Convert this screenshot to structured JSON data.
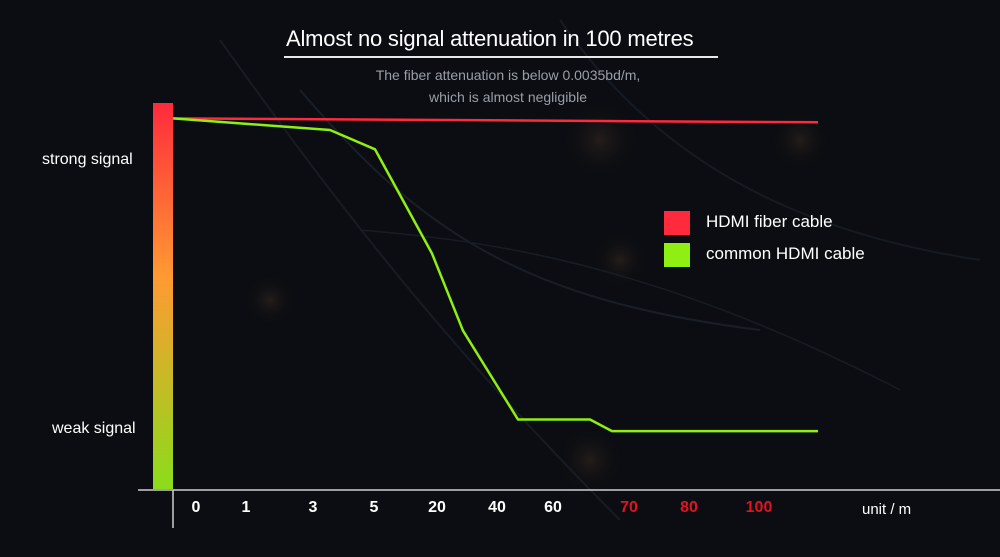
{
  "header": {
    "title": "Almost no signal attenuation in 100 metres",
    "subtitle_line1": "The fiber attenuation is below 0.0035bd/m,",
    "subtitle_line2": "which is almost negligible"
  },
  "y_axis": {
    "top_label": "strong signal",
    "bottom_label": "weak signal",
    "gradient_top_color": "#ff2a3c",
    "gradient_mid_color": "#ff9a32",
    "gradient_bottom_color": "#8bdc1a"
  },
  "x_axis": {
    "unit_label": "unit / m",
    "ticks": [
      {
        "label": "0",
        "color": "#ffffff"
      },
      {
        "label": "1",
        "color": "#ffffff"
      },
      {
        "label": "3",
        "color": "#ffffff"
      },
      {
        "label": "5",
        "color": "#ffffff"
      },
      {
        "label": "20",
        "color": "#ffffff"
      },
      {
        "label": "40",
        "color": "#ffffff"
      },
      {
        "label": "60",
        "color": "#ffffff"
      },
      {
        "label": "70",
        "color": "#e0141e"
      },
      {
        "label": "80",
        "color": "#e0141e"
      },
      {
        "label": "100",
        "color": "#e0141e"
      }
    ]
  },
  "legend": [
    {
      "label": "HDMI fiber cable",
      "color": "#ff2a3c"
    },
    {
      "label": "common HDMI cable",
      "color": "#8fee12"
    }
  ],
  "chart_data": {
    "type": "line",
    "title": "Almost no signal attenuation in 100 metres",
    "subtitle": "The fiber attenuation is below 0.0035bd/m, which is almost negligible",
    "xlabel": "unit / m",
    "ylabel": "",
    "categories": [
      "0",
      "1",
      "3",
      "5",
      "20",
      "40",
      "60",
      "70",
      "80",
      "100"
    ],
    "ylim": [
      0,
      100
    ],
    "y_scale_note": "qualitative: 100 = strong signal, 0 = weak signal",
    "series": [
      {
        "name": "HDMI fiber cable",
        "color": "#ff2a3c",
        "points": [
          [
            0,
            96
          ],
          [
            100,
            95
          ]
        ]
      },
      {
        "name": "common HDMI cable",
        "color": "#8fee12",
        "points": [
          [
            0,
            96
          ],
          [
            3,
            93
          ],
          [
            5,
            88
          ],
          [
            20,
            61
          ],
          [
            40,
            41
          ],
          [
            50,
            18
          ],
          [
            60,
            18
          ],
          [
            70,
            15
          ],
          [
            100,
            15
          ]
        ]
      }
    ],
    "grid": false,
    "legend_position": "right"
  }
}
